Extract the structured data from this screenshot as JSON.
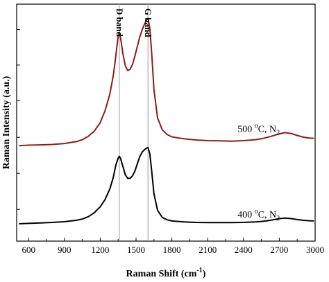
{
  "chart_data": {
    "type": "line",
    "title": "",
    "xlabel": "Raman Shift (cm",
    "xlabel_sup": "-1",
    "xlabel_end": ")",
    "ylabel": "Raman Intensity (a.u.)",
    "xlim": [
      500,
      3000
    ],
    "ylim": [
      0,
      100
    ],
    "x_ticks": [
      600,
      900,
      1200,
      1500,
      1800,
      2100,
      2400,
      2700,
      3000
    ],
    "x_tick_labels": [
      "600",
      "900",
      "1200",
      "1500",
      "1800",
      "2100",
      "2400",
      "2700",
      "3000"
    ],
    "y_ticks": [
      13.4,
      28.6,
      43.8,
      59.2,
      74.3,
      89.3
    ],
    "y_tick_labels_shown": false,
    "grid": false,
    "legend": "none",
    "vertical_lines": [
      {
        "x": 1360,
        "label": "D band"
      },
      {
        "x": 1600,
        "label": "G band"
      }
    ],
    "annotations": [
      {
        "x": 2350,
        "y": 46,
        "base": "500 ",
        "sup": "o",
        "mid": "C, N",
        "sub": "2"
      },
      {
        "x": 2350,
        "y": 10,
        "base": "400 ",
        "sup": "o",
        "mid": "C, N",
        "sub": "2"
      }
    ],
    "series": [
      {
        "color": "#8b1c1c",
        "x": [
          520,
          600,
          700,
          800,
          900,
          1000,
          1050,
          1100,
          1150,
          1200,
          1240,
          1280,
          1310,
          1330,
          1350,
          1360,
          1370,
          1390,
          1410,
          1430,
          1450,
          1470,
          1490,
          1510,
          1530,
          1550,
          1570,
          1590,
          1600,
          1615,
          1630,
          1650,
          1680,
          1720,
          1760,
          1800,
          1900,
          2000,
          2100,
          2200,
          2300,
          2400,
          2500,
          2550,
          2600,
          2650,
          2700,
          2750,
          2800,
          2850,
          2900,
          2950,
          2990
        ],
        "y": [
          40.3,
          40.5,
          40.6,
          40.8,
          41.2,
          42.0,
          42.8,
          44.2,
          46.4,
          50.0,
          55.0,
          62.0,
          70.0,
          78.0,
          86.5,
          88.0,
          86.0,
          79.0,
          74.0,
          72.0,
          72.5,
          74.5,
          78.0,
          82.0,
          86.0,
          89.0,
          91.5,
          93.5,
          94.0,
          90.0,
          80.0,
          64.0,
          52.0,
          47.0,
          45.0,
          44.0,
          43.2,
          42.7,
          42.4,
          42.3,
          42.2,
          42.4,
          42.8,
          43.2,
          43.8,
          44.5,
          45.3,
          45.8,
          45.4,
          44.6,
          43.9,
          43.5,
          43.4
        ]
      },
      {
        "color": "#000000",
        "x": [
          520,
          600,
          700,
          800,
          900,
          1000,
          1050,
          1100,
          1150,
          1200,
          1240,
          1280,
          1310,
          1330,
          1350,
          1360,
          1370,
          1390,
          1410,
          1430,
          1450,
          1470,
          1490,
          1510,
          1530,
          1550,
          1570,
          1590,
          1600,
          1615,
          1630,
          1650,
          1680,
          1720,
          1760,
          1800,
          1900,
          2000,
          2100,
          2200,
          2300,
          2400,
          2500,
          2550,
          2600,
          2650,
          2700,
          2750,
          2800,
          2850,
          2900,
          2950,
          2990
        ],
        "y": [
          7.3,
          7.5,
          7.7,
          7.9,
          8.2,
          8.8,
          9.3,
          10.3,
          12.0,
          14.5,
          17.5,
          22.0,
          27.0,
          32.0,
          35.0,
          35.8,
          35.0,
          31.5,
          28.0,
          26.5,
          26.5,
          27.5,
          29.5,
          32.5,
          35.5,
          37.5,
          38.5,
          39.3,
          39.5,
          37.0,
          30.0,
          20.0,
          13.0,
          10.0,
          9.0,
          8.5,
          8.1,
          7.9,
          7.8,
          7.8,
          7.8,
          7.9,
          8.1,
          8.3,
          8.6,
          9.0,
          9.5,
          9.7,
          9.5,
          9.1,
          8.8,
          8.6,
          8.5
        ]
      }
    ]
  }
}
